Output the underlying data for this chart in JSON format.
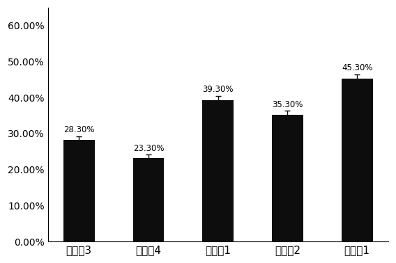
{
  "categories": [
    "对比例3",
    "对比例4",
    "对比例1",
    "对比例2",
    "实施例1"
  ],
  "values": [
    0.283,
    0.233,
    0.393,
    0.353,
    0.453
  ],
  "errors": [
    0.01,
    0.008,
    0.012,
    0.01,
    0.012
  ],
  "labels": [
    "28.30%",
    "23.30%",
    "39.30%",
    "35.30%",
    "45.30%"
  ],
  "bar_color": "#0d0d0d",
  "ylim": [
    0,
    0.65
  ],
  "yticks": [
    0.0,
    0.1,
    0.2,
    0.3,
    0.4,
    0.5,
    0.6
  ],
  "ytick_labels": [
    "0.00%",
    "10.00%",
    "20.00%",
    "30.00%",
    "40.00%",
    "50.00%",
    "60.00%"
  ],
  "bar_width": 0.45,
  "label_fontsize": 8.5,
  "tick_fontsize": 10,
  "xtick_fontsize": 11,
  "background_color": "#ffffff",
  "error_color": "#0d0d0d",
  "capsize": 3
}
